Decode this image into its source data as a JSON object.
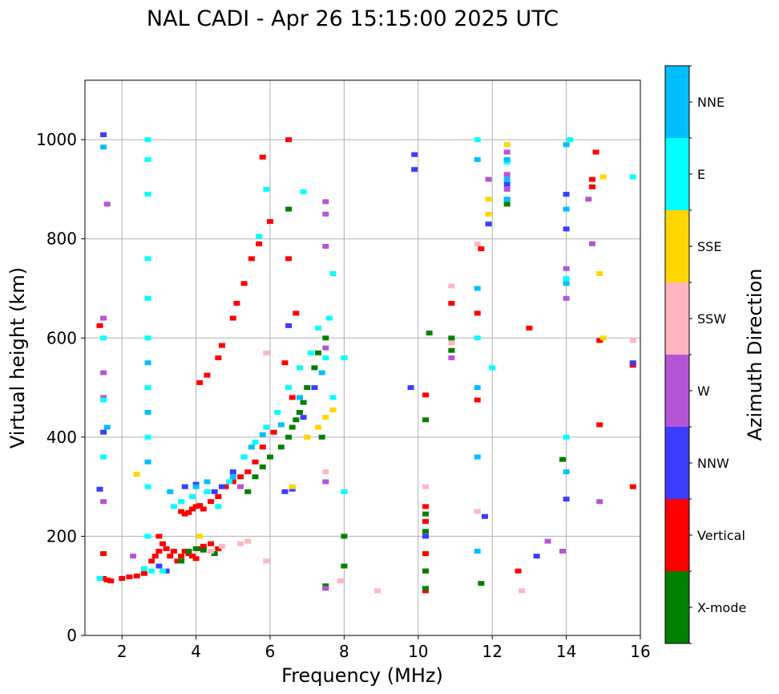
{
  "chart_data": {
    "type": "scatter",
    "title": "NAL CADI - Apr 26 15:15:00 2025 UTC",
    "xlabel": "Frequency (MHz)",
    "ylabel": "Virtual height (km)",
    "xlim": [
      1,
      16
    ],
    "ylim": [
      0,
      1120
    ],
    "xticks": [
      2,
      4,
      6,
      8,
      10,
      12,
      14,
      16
    ],
    "yticks": [
      0,
      200,
      400,
      600,
      800,
      1000
    ],
    "grid": true,
    "colorbar": {
      "label": "Azimuth Direction",
      "categories": [
        {
          "name": "X-mode",
          "color": "#008000"
        },
        {
          "name": "Vertical",
          "color": "#ff0000"
        },
        {
          "name": "NNW",
          "color": "#3c3cff"
        },
        {
          "name": "W",
          "color": "#b555d6"
        },
        {
          "name": "SSW",
          "color": "#ffb6c1"
        },
        {
          "name": "SSE",
          "color": "#ffd700"
        },
        {
          "name": "E",
          "color": "#00ffff"
        },
        {
          "name": "NNE",
          "color": "#00bfff"
        }
      ]
    },
    "series": [
      {
        "name": "Vertical",
        "points": [
          [
            1.5,
            115
          ],
          [
            1.6,
            112
          ],
          [
            1.7,
            110
          ],
          [
            2.0,
            115
          ],
          [
            2.2,
            118
          ],
          [
            2.4,
            120
          ],
          [
            2.6,
            125
          ],
          [
            2.8,
            150
          ],
          [
            2.9,
            160
          ],
          [
            3.0,
            170
          ],
          [
            3.0,
            200
          ],
          [
            3.1,
            185
          ],
          [
            3.2,
            175
          ],
          [
            3.3,
            160
          ],
          [
            3.4,
            170
          ],
          [
            3.5,
            150
          ],
          [
            3.6,
            160
          ],
          [
            3.7,
            170
          ],
          [
            3.8,
            165
          ],
          [
            3.9,
            160
          ],
          [
            4.0,
            155
          ],
          [
            4.1,
            175
          ],
          [
            4.2,
            180
          ],
          [
            4.4,
            185
          ],
          [
            4.6,
            175
          ],
          [
            3.6,
            250
          ],
          [
            3.7,
            245
          ],
          [
            3.8,
            248
          ],
          [
            3.9,
            255
          ],
          [
            4.0,
            260
          ],
          [
            4.1,
            262
          ],
          [
            4.2,
            255
          ],
          [
            4.4,
            270
          ],
          [
            4.6,
            280
          ],
          [
            4.8,
            300
          ],
          [
            5.0,
            310
          ],
          [
            5.2,
            320
          ],
          [
            5.4,
            330
          ],
          [
            5.6,
            350
          ],
          [
            5.8,
            380
          ],
          [
            4.1,
            510
          ],
          [
            4.3,
            525
          ],
          [
            4.6,
            560
          ],
          [
            4.7,
            585
          ],
          [
            5.0,
            640
          ],
          [
            5.1,
            670
          ],
          [
            5.3,
            710
          ],
          [
            5.5,
            760
          ],
          [
            5.7,
            790
          ],
          [
            5.8,
            965
          ],
          [
            6.0,
            835
          ],
          [
            6.1,
            410
          ],
          [
            6.4,
            550
          ],
          [
            6.5,
            760
          ],
          [
            6.6,
            480
          ],
          [
            6.7,
            650
          ],
          [
            6.5,
            1000
          ],
          [
            10.2,
            90
          ],
          [
            10.2,
            130
          ],
          [
            10.2,
            165
          ],
          [
            10.2,
            230
          ],
          [
            10.2,
            260
          ],
          [
            10.2,
            485
          ],
          [
            10.9,
            670
          ],
          [
            11.6,
            475
          ],
          [
            11.6,
            650
          ],
          [
            11.7,
            780
          ],
          [
            12.7,
            130
          ],
          [
            13.0,
            620
          ],
          [
            14.7,
            905
          ],
          [
            14.7,
            920
          ],
          [
            14.8,
            975
          ],
          [
            14.9,
            425
          ],
          [
            14.9,
            595
          ],
          [
            15.8,
            300
          ],
          [
            15.8,
            545
          ],
          [
            1.4,
            625
          ],
          [
            1.5,
            165
          ]
        ]
      },
      {
        "name": "X-mode",
        "points": [
          [
            3.6,
            150
          ],
          [
            3.8,
            170
          ],
          [
            4.0,
            175
          ],
          [
            4.2,
            172
          ],
          [
            4.5,
            165
          ],
          [
            5.4,
            290
          ],
          [
            5.6,
            320
          ],
          [
            5.8,
            340
          ],
          [
            6.0,
            360
          ],
          [
            6.3,
            380
          ],
          [
            6.5,
            400
          ],
          [
            6.6,
            420
          ],
          [
            6.7,
            435
          ],
          [
            6.8,
            450
          ],
          [
            6.9,
            470
          ],
          [
            7.0,
            500
          ],
          [
            7.2,
            540
          ],
          [
            7.3,
            570
          ],
          [
            7.5,
            600
          ],
          [
            6.5,
            860
          ],
          [
            7.4,
            400
          ],
          [
            7.5,
            100
          ],
          [
            8.0,
            200
          ],
          [
            8.0,
            140
          ],
          [
            10.2,
            95
          ],
          [
            10.2,
            130
          ],
          [
            10.2,
            210
          ],
          [
            10.2,
            245
          ],
          [
            10.2,
            435
          ],
          [
            10.3,
            610
          ],
          [
            10.9,
            575
          ],
          [
            10.9,
            600
          ],
          [
            11.7,
            105
          ],
          [
            12.4,
            870
          ],
          [
            13.9,
            355
          ]
        ]
      },
      {
        "name": "NNW",
        "points": [
          [
            1.5,
            1010
          ],
          [
            3.0,
            140
          ],
          [
            3.2,
            130
          ],
          [
            3.7,
            300
          ],
          [
            4.0,
            305
          ],
          [
            4.5,
            290
          ],
          [
            4.7,
            300
          ],
          [
            5.0,
            330
          ],
          [
            5.3,
            360
          ],
          [
            6.4,
            290
          ],
          [
            6.5,
            625
          ],
          [
            6.6,
            295
          ],
          [
            6.9,
            440
          ],
          [
            7.2,
            500
          ],
          [
            9.8,
            500
          ],
          [
            9.9,
            940
          ],
          [
            9.9,
            970
          ],
          [
            10.2,
            200
          ],
          [
            11.8,
            240
          ],
          [
            11.9,
            830
          ],
          [
            12.4,
            910
          ],
          [
            13.2,
            160
          ],
          [
            14.0,
            275
          ],
          [
            14.0,
            890
          ],
          [
            14.0,
            820
          ],
          [
            15.8,
            550
          ],
          [
            1.5,
            410
          ],
          [
            1.4,
            295
          ]
        ]
      },
      {
        "name": "W",
        "points": [
          [
            1.5,
            530
          ],
          [
            1.5,
            640
          ],
          [
            1.5,
            480
          ],
          [
            1.5,
            270
          ],
          [
            1.6,
            870
          ],
          [
            2.3,
            160
          ],
          [
            5.2,
            300
          ],
          [
            7.5,
            95
          ],
          [
            7.5,
            310
          ],
          [
            7.5,
            580
          ],
          [
            7.5,
            785
          ],
          [
            7.5,
            850
          ],
          [
            7.5,
            875
          ],
          [
            10.9,
            560
          ],
          [
            11.9,
            920
          ],
          [
            12.4,
            880
          ],
          [
            12.4,
            900
          ],
          [
            12.4,
            930
          ],
          [
            12.4,
            975
          ],
          [
            13.5,
            190
          ],
          [
            13.9,
            170
          ],
          [
            14.0,
            680
          ],
          [
            14.0,
            740
          ],
          [
            14.6,
            880
          ],
          [
            14.7,
            790
          ],
          [
            14.9,
            270
          ]
        ]
      },
      {
        "name": "SSW",
        "points": [
          [
            4.4,
            170
          ],
          [
            4.7,
            180
          ],
          [
            5.2,
            185
          ],
          [
            5.4,
            190
          ],
          [
            5.9,
            150
          ],
          [
            5.9,
            570
          ],
          [
            7.5,
            330
          ],
          [
            7.9,
            110
          ],
          [
            8.9,
            90
          ],
          [
            10.2,
            300
          ],
          [
            10.9,
            590
          ],
          [
            10.9,
            705
          ],
          [
            11.6,
            250
          ],
          [
            11.6,
            790
          ],
          [
            12.8,
            90
          ],
          [
            15.8,
            595
          ]
        ]
      },
      {
        "name": "SSE",
        "points": [
          [
            2.4,
            325
          ],
          [
            6.6,
            300
          ],
          [
            7.0,
            400
          ],
          [
            7.3,
            420
          ],
          [
            7.5,
            440
          ],
          [
            7.7,
            455
          ],
          [
            11.9,
            880
          ],
          [
            11.9,
            850
          ],
          [
            14.9,
            730
          ],
          [
            15.0,
            925
          ],
          [
            15.0,
            600
          ],
          [
            12.4,
            990
          ],
          [
            4.1,
            200
          ]
        ]
      },
      {
        "name": "E",
        "points": [
          [
            1.4,
            115
          ],
          [
            1.5,
            360
          ],
          [
            1.5,
            475
          ],
          [
            1.5,
            600
          ],
          [
            2.6,
            135
          ],
          [
            2.7,
            1000
          ],
          [
            2.7,
            960
          ],
          [
            2.7,
            890
          ],
          [
            2.7,
            760
          ],
          [
            2.7,
            680
          ],
          [
            2.7,
            600
          ],
          [
            2.7,
            500
          ],
          [
            2.7,
            400
          ],
          [
            2.7,
            300
          ],
          [
            2.7,
            200
          ],
          [
            2.8,
            130
          ],
          [
            3.1,
            130
          ],
          [
            3.4,
            260
          ],
          [
            3.6,
            270
          ],
          [
            3.9,
            280
          ],
          [
            4.3,
            290
          ],
          [
            4.6,
            260
          ],
          [
            4.9,
            310
          ],
          [
            5.3,
            360
          ],
          [
            5.6,
            390
          ],
          [
            5.9,
            420
          ],
          [
            6.2,
            450
          ],
          [
            6.5,
            500
          ],
          [
            6.8,
            540
          ],
          [
            7.1,
            570
          ],
          [
            7.3,
            620
          ],
          [
            7.5,
            560
          ],
          [
            7.6,
            640
          ],
          [
            7.7,
            480
          ],
          [
            7.7,
            730
          ],
          [
            5.7,
            805
          ],
          [
            5.9,
            900
          ],
          [
            6.9,
            895
          ],
          [
            8.0,
            560
          ],
          [
            8.0,
            290
          ],
          [
            11.6,
            600
          ],
          [
            11.6,
            1000
          ],
          [
            12.0,
            540
          ],
          [
            12.4,
            955
          ],
          [
            14.0,
            400
          ],
          [
            14.0,
            720
          ],
          [
            14.1,
            1000
          ],
          [
            15.8,
            925
          ]
        ]
      },
      {
        "name": "NNE",
        "points": [
          [
            1.5,
            985
          ],
          [
            1.6,
            420
          ],
          [
            2.7,
            550
          ],
          [
            2.7,
            450
          ],
          [
            2.7,
            350
          ],
          [
            3.3,
            290
          ],
          [
            4.0,
            300
          ],
          [
            4.3,
            310
          ],
          [
            5.0,
            320
          ],
          [
            5.5,
            380
          ],
          [
            5.8,
            405
          ],
          [
            6.3,
            425
          ],
          [
            6.8,
            480
          ],
          [
            7.4,
            530
          ],
          [
            11.6,
            170
          ],
          [
            11.6,
            360
          ],
          [
            11.6,
            500
          ],
          [
            11.6,
            700
          ],
          [
            11.6,
            960
          ],
          [
            12.4,
            880
          ],
          [
            12.4,
            920
          ],
          [
            12.4,
            960
          ],
          [
            14.0,
            330
          ],
          [
            14.0,
            710
          ],
          [
            14.0,
            860
          ],
          [
            14.0,
            990
          ]
        ]
      }
    ]
  }
}
